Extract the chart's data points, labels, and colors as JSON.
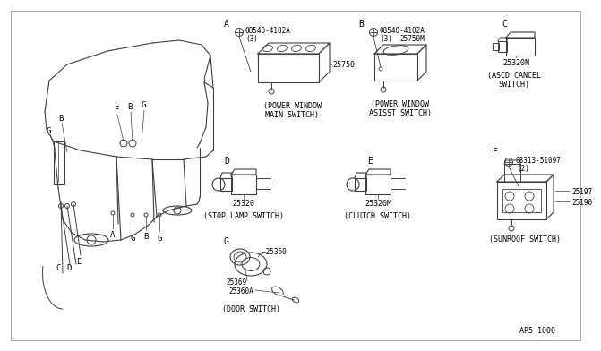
{
  "bg_color": "#ffffff",
  "line_color": "#404040",
  "text_color": "#000000",
  "diagram_id": "AP5 1000",
  "font": "monospace",
  "sections": {
    "A": {
      "label": "A",
      "part": "25750",
      "bolt": "08540-4102A",
      "bolt_qty": "(3)",
      "cap1": "(POWER WINDOW",
      "cap2": "MAIN SWITCH)"
    },
    "B": {
      "label": "B",
      "part": "25750M",
      "bolt": "08540-4102A",
      "bolt_qty": "(3)",
      "cap1": "(POWER WINDOW",
      "cap2": "ASISST SWITCH)"
    },
    "C": {
      "label": "C",
      "part": "25320N",
      "cap1": "(ASCD CANCEL",
      "cap2": "SWITCH)"
    },
    "D": {
      "label": "D",
      "part": "25320",
      "cap1": "(STOP LAMP SWITCH)"
    },
    "E": {
      "label": "E",
      "part": "25320M",
      "cap1": "(CLUTCH SWITCH)"
    },
    "F": {
      "label": "F",
      "part1": "25197",
      "part2": "25190",
      "bolt": "08313-51097",
      "bolt_qty": "(2)",
      "cap1": "(SUNROOF SWITCH)"
    },
    "G": {
      "label": "G",
      "part1": "25360",
      "part2": "25369",
      "part3": "25360A",
      "cap1": "(DOOR SWITCH)"
    }
  }
}
